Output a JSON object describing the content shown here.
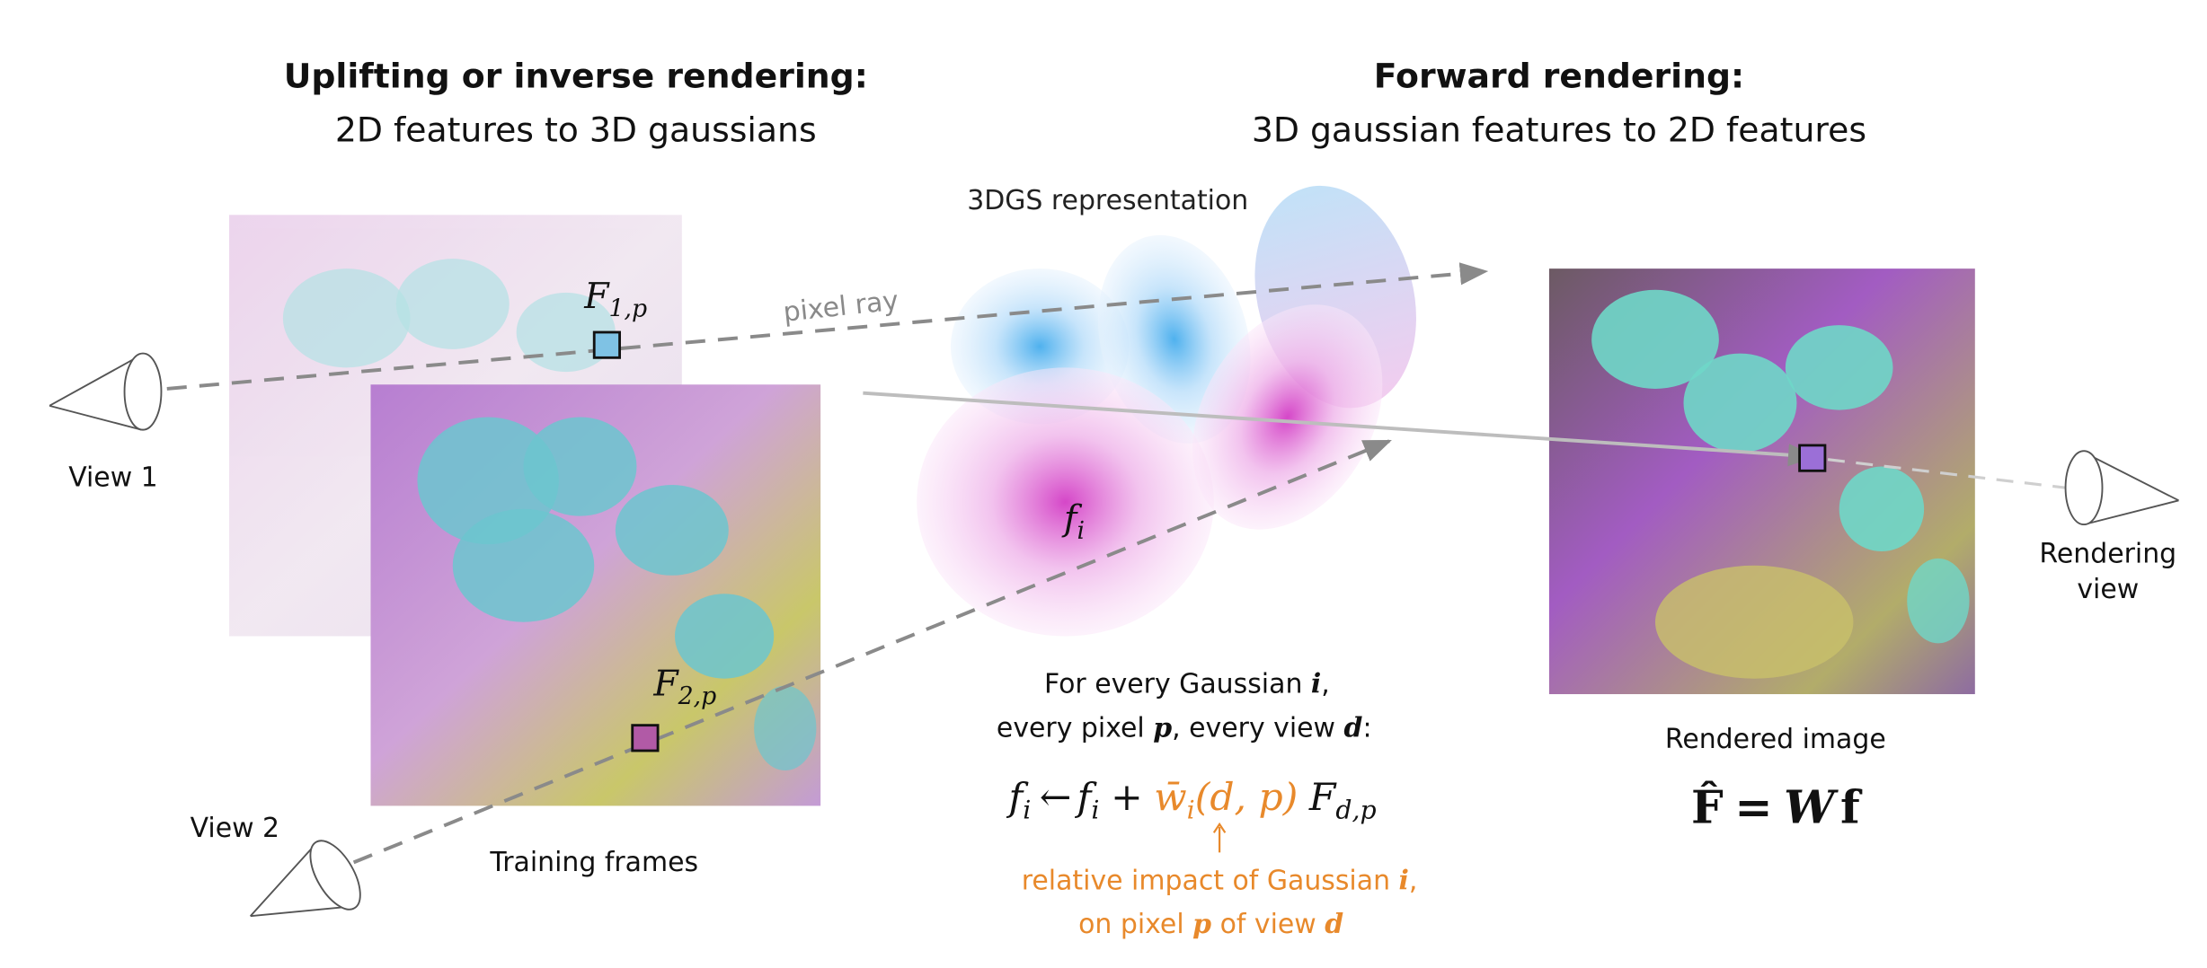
{
  "headings": [
    {
      "title": "Uplifting or inverse rendering:",
      "subtitle": "2D features to 3D gaussians"
    },
    {
      "title": "Forward rendering:",
      "subtitle": "3D gaussian features to 2D features"
    }
  ],
  "labels": {
    "representation": "3DGS representation",
    "ray": "pixel ray",
    "view1": "View 1",
    "view2": "View 2",
    "training": "Training frames",
    "rendered": "Rendered image",
    "rendering_view": [
      "Rendering",
      "view"
    ]
  },
  "math": {
    "f1": [
      "F",
      "1,p"
    ],
    "f2": [
      "F",
      "2,p"
    ],
    "fi": [
      "f",
      "i"
    ]
  },
  "update": {
    "lines": [
      [
        "For every Gaussian ",
        "i",
        ","
      ],
      [
        "every pixel ",
        "p",
        ", every view ",
        "d",
        ":"
      ]
    ],
    "equation": [
      "f",
      "i",
      "←",
      "f",
      "i",
      "+",
      "w̄",
      "i",
      "(d, p)",
      "F",
      "d,p"
    ],
    "note": [
      [
        "relative impact of Gaussian ",
        "i",
        ","
      ],
      [
        "on pixel ",
        "p",
        " of view ",
        "d"
      ]
    ]
  },
  "formula": [
    "F̂",
    "=",
    "W",
    "f"
  ]
}
